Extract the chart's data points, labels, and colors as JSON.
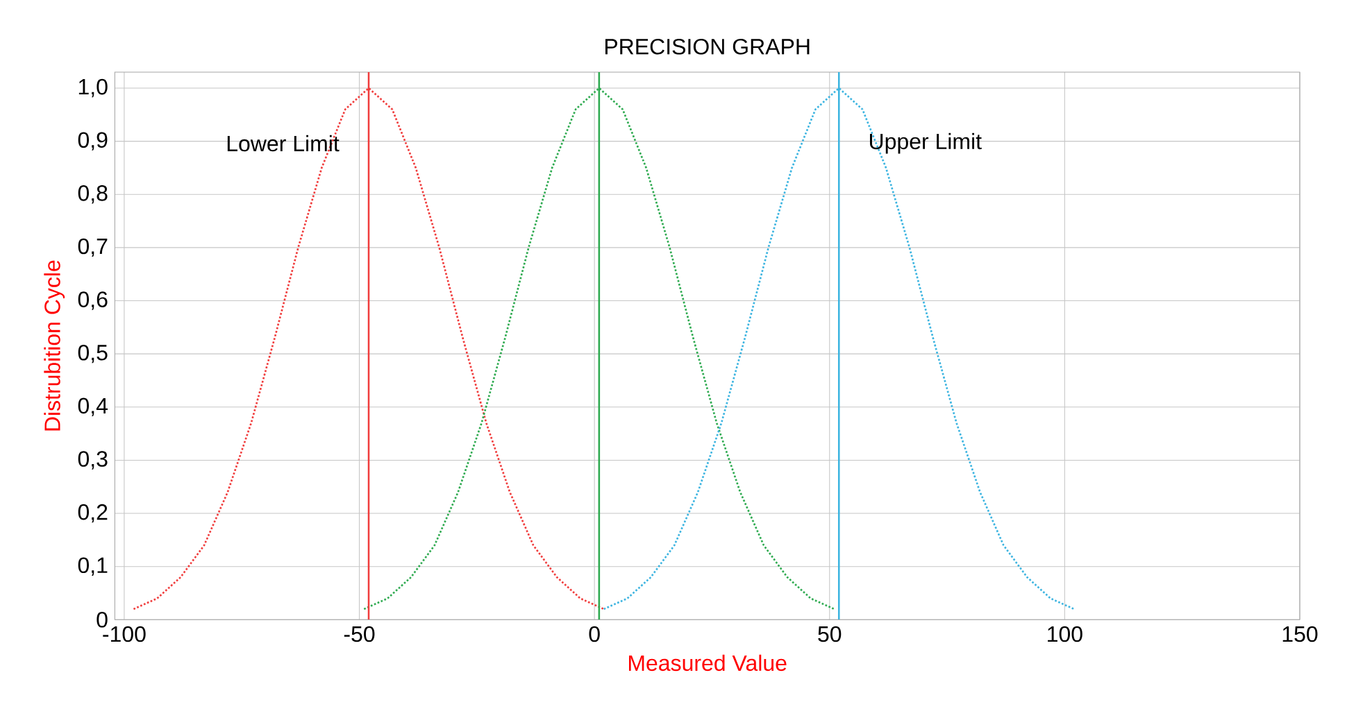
{
  "chart_data": {
    "type": "line",
    "title": "PRECISION GRAPH",
    "xlabel": "Measured Value",
    "ylabel": "Distrubition Cycle",
    "xlim": [
      -102,
      150
    ],
    "xticks": [
      -100,
      -50,
      0,
      50,
      100,
      150
    ],
    "ylim": [
      0,
      1.03
    ],
    "yticks": [
      {
        "value": 0,
        "label": "0"
      },
      {
        "value": 0.1,
        "label": "0,1"
      },
      {
        "value": 0.2,
        "label": "0,2"
      },
      {
        "value": 0.3,
        "label": "0,3"
      },
      {
        "value": 0.4,
        "label": "0,4"
      },
      {
        "value": 0.5,
        "label": "0,5"
      },
      {
        "value": 0.6,
        "label": "0,6"
      },
      {
        "value": 0.7,
        "label": "0,7"
      },
      {
        "value": 0.8,
        "label": "0,8"
      },
      {
        "value": 0.9,
        "label": "0,9"
      },
      {
        "value": 1.0,
        "label": "1,0"
      }
    ],
    "grid": true,
    "marker": "none",
    "line_style": "dotted",
    "series": [
      {
        "color": "#f03c3c",
        "x": [
          -98,
          -93,
          -88,
          -83,
          -78,
          -73,
          -68,
          -63,
          -58,
          -53,
          -48,
          -43,
          -38,
          -33,
          -28,
          -23,
          -18,
          -13,
          -8,
          -3,
          2
        ],
        "values": [
          0.02,
          0.04,
          0.08,
          0.14,
          0.24,
          0.37,
          0.53,
          0.7,
          0.85,
          0.96,
          1.0,
          0.96,
          0.85,
          0.7,
          0.53,
          0.37,
          0.24,
          0.14,
          0.08,
          0.04,
          0.02
        ]
      },
      {
        "color": "#2eaa50",
        "x": [
          -49,
          -44,
          -39,
          -34,
          -29,
          -24,
          -19,
          -14,
          -9,
          -4,
          1,
          6,
          11,
          16,
          21,
          26,
          31,
          36,
          41,
          46,
          51
        ],
        "values": [
          0.02,
          0.04,
          0.08,
          0.14,
          0.24,
          0.37,
          0.53,
          0.7,
          0.85,
          0.96,
          1.0,
          0.96,
          0.85,
          0.7,
          0.53,
          0.37,
          0.24,
          0.14,
          0.08,
          0.04,
          0.02
        ]
      },
      {
        "color": "#3cb4e0",
        "x": [
          2,
          7,
          12,
          17,
          22,
          27,
          32,
          37,
          42,
          47,
          52,
          57,
          62,
          67,
          72,
          77,
          82,
          87,
          92,
          97,
          102
        ],
        "values": [
          0.02,
          0.04,
          0.08,
          0.14,
          0.24,
          0.37,
          0.53,
          0.7,
          0.85,
          0.96,
          1.0,
          0.96,
          0.85,
          0.7,
          0.53,
          0.37,
          0.24,
          0.14,
          0.08,
          0.04,
          0.02
        ]
      }
    ],
    "ref_lines": [
      {
        "axis": "x",
        "value": -48,
        "label": "Lower Limit",
        "color": "#f03c3c"
      },
      {
        "axis": "x",
        "value": 1,
        "color": "#2eaa50"
      },
      {
        "axis": "x",
        "value": 52,
        "label": "Upper Limit",
        "color": "#3cb4e0"
      }
    ]
  }
}
